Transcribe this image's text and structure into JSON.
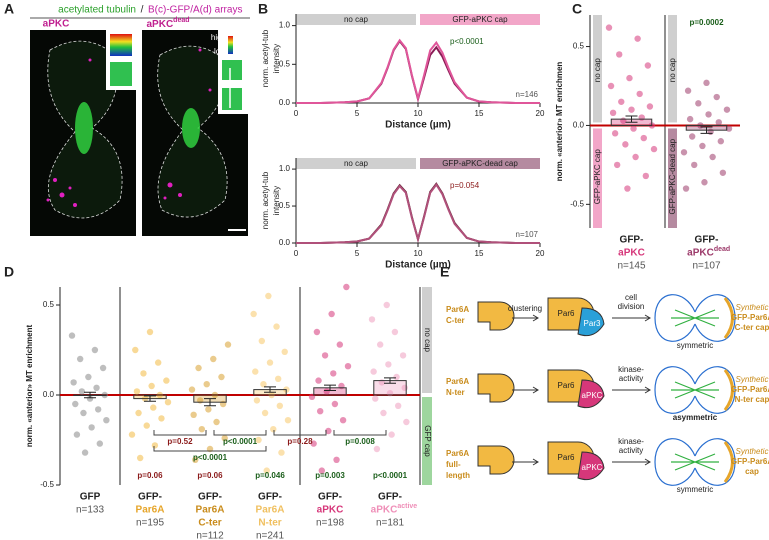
{
  "panel_labels": {
    "a": "A",
    "b": "B",
    "c": "C",
    "d": "D",
    "e": "E"
  },
  "panel_a": {
    "title_green": "acetylated tubulin",
    "title_sep": "/",
    "title_magenta": "B(c)-GFP/A(d) arrays",
    "images": [
      {
        "label": "aPKC"
      },
      {
        "label": "aPKC",
        "superscript": "dead"
      }
    ],
    "legend": {
      "high": "high",
      "low": "low"
    }
  },
  "chart_data": [
    {
      "type": "line",
      "x": [
        0,
        2,
        4,
        5,
        6,
        7,
        7.5,
        8,
        8.5,
        9,
        9.5,
        10,
        10.5,
        11,
        11.5,
        12,
        12.5,
        13,
        14,
        15,
        16,
        18,
        20
      ],
      "series": [
        {
          "color": "#8a1c55",
          "values": [
            0,
            0,
            0.01,
            0.02,
            0.06,
            0.25,
            0.45,
            0.68,
            0.8,
            0.7,
            0.35,
            0.05,
            0.33,
            0.62,
            0.72,
            0.6,
            0.42,
            0.25,
            0.07,
            0.02,
            0.01,
            0,
            0
          ]
        },
        {
          "color": "#e0569a",
          "values": [
            0,
            0,
            0.01,
            0.02,
            0.06,
            0.26,
            0.46,
            0.69,
            0.81,
            0.71,
            0.36,
            0.06,
            0.36,
            0.68,
            0.78,
            0.65,
            0.45,
            0.27,
            0.07,
            0.02,
            0.01,
            0,
            0
          ]
        }
      ],
      "xlim": [
        0,
        20
      ],
      "xticks": [
        0,
        5,
        10,
        15,
        20
      ],
      "ylim": [
        0,
        1.15
      ],
      "yticks": [
        {
          "value": 0,
          "label": "0.0"
        },
        0.5,
        {
          "value": 1,
          "label": "1.0"
        }
      ],
      "xlabel": "Distance (µm)",
      "ylabel": [
        "norm. acetyl-tub",
        "intensity"
      ],
      "cap_labels": [
        "no cap",
        "GFP-aPKC cap"
      ],
      "cap_colors": [
        "#cfcfcf",
        "#f2a6c8"
      ],
      "annotations": [
        {
          "text": "p<0.0001",
          "color": "#1a5e1a"
        },
        {
          "text": "n=146",
          "color": "#555555"
        }
      ]
    },
    {
      "type": "line",
      "x": [
        0,
        2,
        4,
        5,
        6,
        7,
        7.5,
        8,
        8.5,
        9,
        9.5,
        10,
        10.5,
        11,
        11.5,
        12,
        12.5,
        13,
        14,
        15,
        16,
        18,
        20
      ],
      "series": [
        {
          "color": "#5a1a2a",
          "values": [
            0,
            0,
            0.01,
            0.02,
            0.06,
            0.25,
            0.45,
            0.67,
            0.78,
            0.69,
            0.35,
            0.05,
            0.36,
            0.69,
            0.8,
            0.67,
            0.46,
            0.27,
            0.07,
            0.02,
            0.01,
            0,
            0
          ]
        },
        {
          "color": "#b0507a",
          "values": [
            0,
            0,
            0.01,
            0.02,
            0.06,
            0.24,
            0.44,
            0.66,
            0.77,
            0.68,
            0.34,
            0.05,
            0.35,
            0.68,
            0.79,
            0.66,
            0.45,
            0.26,
            0.07,
            0.02,
            0.01,
            0,
            0
          ]
        }
      ],
      "xlim": [
        0,
        20
      ],
      "xticks": [
        0,
        5,
        10,
        15,
        20
      ],
      "ylim": [
        0,
        1.15
      ],
      "yticks": [
        {
          "value": 0,
          "label": "0.0"
        },
        0.5,
        {
          "value": 1,
          "label": "1.0"
        }
      ],
      "xlabel": "Distance (µm)",
      "ylabel": [
        "norm. acetyl-tub",
        "intensity"
      ],
      "cap_labels": [
        "no cap",
        "GFP-aPKC-dead cap"
      ],
      "cap_colors": [
        "#cfcfcf",
        "#b58aa0"
      ],
      "annotations": [
        {
          "text": "p=0.054",
          "color": "#8b1a1a"
        },
        {
          "text": "n=107",
          "color": "#555555"
        }
      ]
    },
    {
      "type": "strip",
      "ylim": [
        -0.65,
        0.7
      ],
      "yticks": [
        -0.5,
        {
          "value": 0,
          "label": "0.0"
        },
        0.5
      ],
      "ylabel": "norm. «anterior» MT enrichmen",
      "no_cap": "no cap",
      "annotation": {
        "text": "p=0.0002",
        "color": "#1a5e1a"
      },
      "groups": [
        {
          "label_lines": [
            "GFP-",
            "aPKC"
          ],
          "label_colors": [
            "#222222",
            "#d6377a"
          ],
          "n": "n=145",
          "color": "#d6377a",
          "cap_label": "GFP-aPKC cap",
          "cap_color": "#f2a6c8",
          "values": [
            0.62,
            0.55,
            0.45,
            0.38,
            0.3,
            0.25,
            0.2,
            0.15,
            0.12,
            0.1,
            0.08,
            0.05,
            0.03,
            0,
            -0.02,
            -0.05,
            -0.08,
            -0.12,
            -0.15,
            -0.2,
            -0.25,
            -0.32,
            -0.4
          ],
          "mean": 0.04,
          "sem": 0.02
        },
        {
          "label_lines": [
            "GFP-",
            "aPKC"
          ],
          "superscript": "dead",
          "label_colors": [
            "#222222",
            "#9c3a6a"
          ],
          "n": "n=107",
          "color": "#9c3a6a",
          "cap_label": "GFP-aPKC-dead cap",
          "cap_color": "#b58aa0",
          "values": [
            0.27,
            0.22,
            0.18,
            0.14,
            0.1,
            0.07,
            0.04,
            0.02,
            0,
            -0.02,
            -0.04,
            -0.07,
            -0.1,
            -0.13,
            -0.17,
            -0.2,
            -0.25,
            -0.3,
            -0.36,
            -0.4
          ],
          "mean": -0.03,
          "sem": 0.02
        }
      ]
    },
    {
      "type": "strip",
      "ylim": [
        -0.5,
        0.6
      ],
      "yticks": [
        -0.5,
        {
          "value": 0,
          "label": "0.0"
        },
        0.5
      ],
      "ylabel": "norm. «anterior» MT enrichment",
      "side_labels": [
        "no cap",
        "GFP cap"
      ],
      "side_colors": [
        "#cfcfcf",
        "#9ed69e"
      ],
      "groups": [
        {
          "label_lines": [
            "GFP"
          ],
          "label_colors": [
            "#222222"
          ],
          "n": "n=133",
          "color": "#888888",
          "values": [
            0.33,
            0.25,
            0.2,
            0.15,
            0.1,
            0.07,
            0.04,
            0.02,
            0,
            -0.02,
            -0.05,
            -0.08,
            -0.1,
            -0.14,
            -0.18,
            -0.22,
            -0.27,
            -0.32
          ],
          "mean": 0,
          "sem": 0.015
        },
        {
          "label_lines": [
            "GFP-",
            "Par6A"
          ],
          "label_colors": [
            "#222222",
            "#e6a52a"
          ],
          "n": "n=195",
          "color": "#f2b942",
          "p": "p=0.06",
          "p_color": "#8b1a1a",
          "values": [
            0.35,
            0.25,
            0.18,
            0.12,
            0.08,
            0.05,
            0.02,
            0,
            -0.02,
            -0.04,
            -0.07,
            -0.1,
            -0.13,
            -0.17,
            -0.22,
            -0.28,
            -0.35
          ],
          "mean": -0.02,
          "sem": 0.015
        },
        {
          "label_lines": [
            "GFP-",
            "Par6A",
            "C-ter"
          ],
          "label_colors": [
            "#222222",
            "#c98c1c",
            "#c98c1c"
          ],
          "n": "n=112",
          "color": "#d9a030",
          "p": "p=0.06",
          "p_color": "#8b1a1a",
          "values": [
            0.28,
            0.2,
            0.15,
            0.1,
            0.06,
            0.03,
            0,
            -0.03,
            -0.05,
            -0.08,
            -0.11,
            -0.15,
            -0.19,
            -0.24,
            -0.3,
            -0.36
          ],
          "mean": -0.04,
          "sem": 0.02
        },
        {
          "label_lines": [
            "GFP-",
            "Par6A",
            "N-ter"
          ],
          "label_colors": [
            "#222222",
            "#f0c060",
            "#f0c060"
          ],
          "n": "n=241",
          "color": "#f7c86a",
          "p": "p=0.046",
          "p_color": "#1a5e1a",
          "values": [
            0.55,
            0.45,
            0.38,
            0.3,
            0.24,
            0.18,
            0.13,
            0.09,
            0.06,
            0.03,
            0,
            -0.03,
            -0.06,
            -0.1,
            -0.14,
            -0.19,
            -0.25,
            -0.32,
            -0.42
          ],
          "mean": 0.03,
          "sem": 0.015
        },
        {
          "label_lines": [
            "GFP-",
            "aPKC"
          ],
          "label_colors": [
            "#222222",
            "#d6377a"
          ],
          "n": "n=198",
          "color": "#d6377a",
          "p": "p=0.003",
          "p_color": "#1a5e1a",
          "values": [
            0.6,
            0.45,
            0.35,
            0.28,
            0.22,
            0.16,
            0.12,
            0.08,
            0.05,
            0.02,
            -0.01,
            -0.05,
            -0.09,
            -0.14,
            -0.2,
            -0.27,
            -0.36,
            -0.42
          ],
          "mean": 0.04,
          "sem": 0.015
        },
        {
          "label_lines": [
            "GFP-",
            "aPKC"
          ],
          "superscript": "active",
          "label_colors": [
            "#222222",
            "#ef8fb8"
          ],
          "n": "n=181",
          "color": "#ef9fc0",
          "p": "p<0.0001",
          "p_color": "#1a5e1a",
          "values": [
            0.5,
            0.42,
            0.35,
            0.28,
            0.22,
            0.17,
            0.13,
            0.1,
            0.07,
            0.04,
            0.01,
            -0.02,
            -0.06,
            -0.1,
            -0.15,
            -0.22,
            -0.3
          ],
          "mean": 0.08,
          "sem": 0.015
        }
      ],
      "comparisons": [
        {
          "groups": [
            1,
            2
          ],
          "label": "p=0.52",
          "color": "#8b1a1a"
        },
        {
          "groups": [
            2,
            3
          ],
          "label": "p<0.0001",
          "color": "#1a5e1a"
        },
        {
          "groups": [
            1,
            3
          ],
          "label": "p<0.0001",
          "color": "#1a5e1a"
        },
        {
          "groups": [
            3,
            4
          ],
          "label": "p=0.28",
          "color": "#8b1a1a"
        },
        {
          "groups": [
            4,
            5
          ],
          "label": "p=0.008",
          "color": "#1a5e1a"
        }
      ]
    }
  ],
  "panel_e": {
    "rows": [
      {
        "label": [
          "Par6A",
          "C-ter"
        ],
        "arrow1": "clustering",
        "parts": [
          "Par6",
          "Par3"
        ],
        "arrow2": [
          "cell",
          "division"
        ],
        "outcome": "symmetric",
        "caption": [
          "Synthetic",
          "GFP-Par6A",
          "C-ter cap"
        ]
      },
      {
        "label": [
          "Par6A",
          "N-ter"
        ],
        "parts": [
          "Par6",
          "aPKC"
        ],
        "arrow2": [
          "kinase-",
          "activity"
        ],
        "outcome": "asymmetric",
        "caption": [
          "Synthetic",
          "GFP-Par6A",
          "N-ter cap"
        ]
      },
      {
        "label": [
          "Par6A",
          "full-",
          "length"
        ],
        "parts": [
          "Par6",
          "aPKC"
        ],
        "arrow2": [
          "kinase-",
          "activity"
        ],
        "outcome": "symmetric",
        "caption": [
          "Synthetic",
          "GFP-Par6A",
          "cap"
        ]
      }
    ]
  }
}
